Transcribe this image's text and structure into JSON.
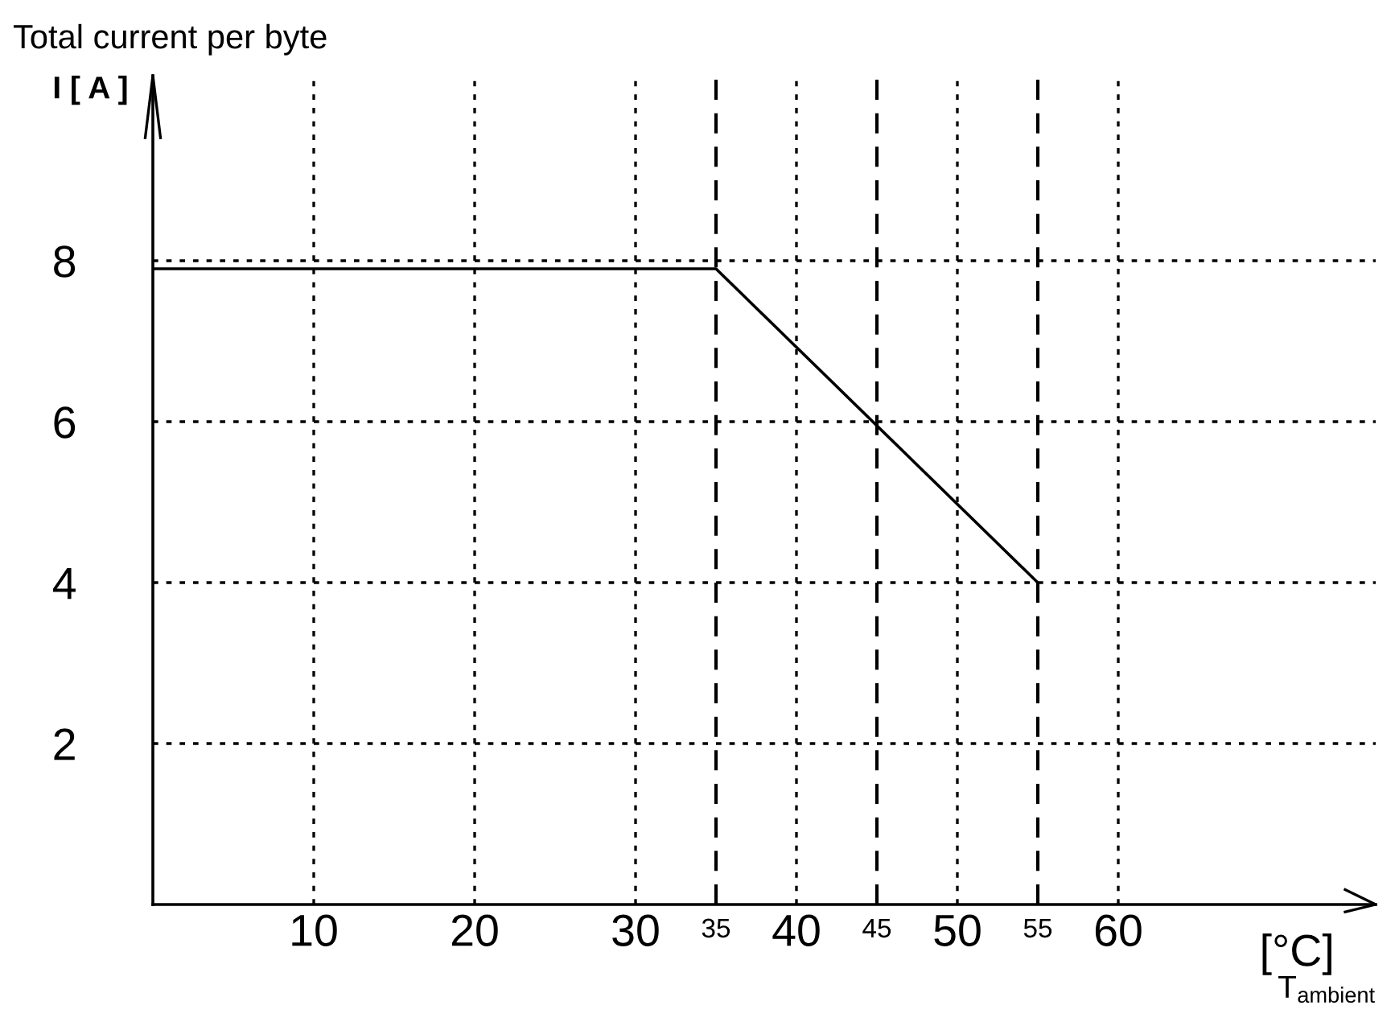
{
  "chart_data": {
    "type": "line",
    "title": "Total current per byte",
    "ylabel": "I [ A ]",
    "xlabel": "[°C]",
    "annotations": [
      "T$_{ambient}$"
    ],
    "x": [
      0,
      35,
      55
    ],
    "series": [
      {
        "color": "#000000",
        "values": [
          7.9,
          7.9,
          4.0
        ]
      }
    ],
    "xlim": [
      0,
      76
    ],
    "ylim": [
      0,
      10.3
    ],
    "xticks": [
      10,
      20,
      30,
      40,
      50,
      60
    ],
    "yticks": [
      2,
      4,
      6,
      8
    ],
    "ref_lines": [
      {
        "axis": "x",
        "value": 35,
        "label": "35",
        "line_style": "dashed",
        "color": "#000000"
      },
      {
        "axis": "x",
        "value": 45,
        "label": "45",
        "line_style": "dashed",
        "color": "#000000"
      },
      {
        "axis": "x",
        "value": 55,
        "label": "55",
        "line_style": "dashed",
        "color": "#000000"
      }
    ],
    "grid": true,
    "line_style": "solid",
    "marker": "none",
    "legend": false
  }
}
